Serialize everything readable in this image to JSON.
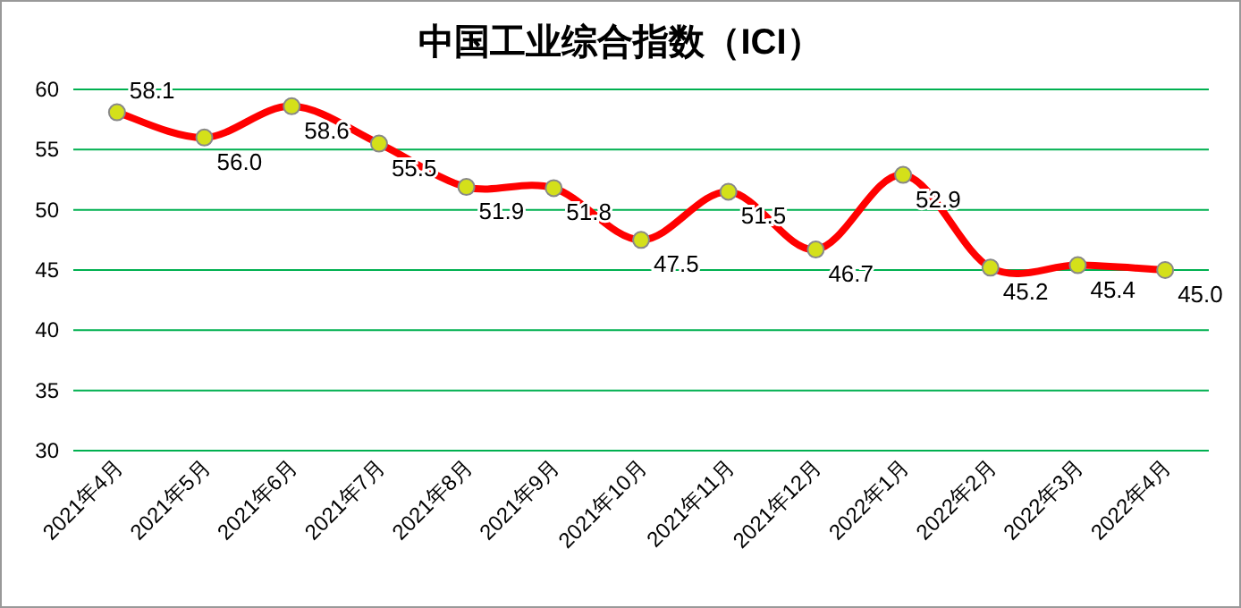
{
  "chart_data": {
    "type": "line",
    "title": "中国工业综合指数（ICI）",
    "categories": [
      "2021年4月",
      "2021年5月",
      "2021年6月",
      "2021年7月",
      "2021年8月",
      "2021年9月",
      "2021年10月",
      "2021年11月",
      "2021年12月",
      "2022年1月",
      "2022年2月",
      "2022年3月",
      "2022年4月"
    ],
    "series": [
      {
        "color": "#ff0000",
        "values": [
          58.1,
          56.0,
          58.6,
          55.5,
          51.9,
          51.8,
          47.5,
          51.5,
          46.7,
          52.9,
          45.2,
          45.4,
          45.0
        ],
        "value_labels": [
          "58.1",
          "56.0",
          "58.6",
          "55.5",
          "51.9",
          "51.8",
          "47.5",
          "51.5",
          "46.7",
          "52.9",
          "45.2",
          "45.4",
          "45.0"
        ]
      }
    ],
    "ylim": [
      30,
      60
    ],
    "yticks": [
      30,
      35,
      40,
      45,
      50,
      55,
      60
    ],
    "grid": "y",
    "marker": "circle",
    "line_style": "solid"
  }
}
